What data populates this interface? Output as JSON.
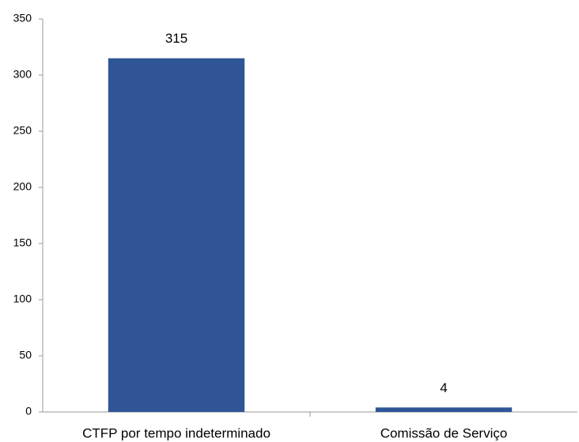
{
  "chart_data": {
    "type": "bar",
    "categories": [
      "CTFP por tempo indeterminado",
      "Comissão de Serviço"
    ],
    "values": [
      315,
      4
    ],
    "color": "#2f5597",
    "ylim": [
      0,
      350
    ],
    "yticks": [
      0,
      50,
      100,
      150,
      200,
      250,
      300,
      350
    ],
    "grid": false
  }
}
